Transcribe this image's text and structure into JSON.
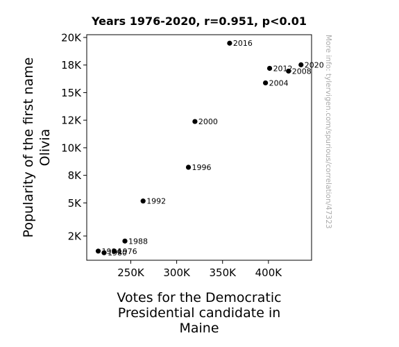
{
  "chart_data": {
    "type": "scatter",
    "title": "Years 1976-2020, r=0.951, p<0.01",
    "xlabel": [
      "Votes for the Democratic",
      "Presidential candidate in",
      "Maine"
    ],
    "ylabel": [
      "Popularity of the first name",
      "Olivia"
    ],
    "side_note": "More info: tylervigen.com/spurious/correlation/47323",
    "xlim": [
      202000,
      447000
    ],
    "ylim": [
      -200,
      20250
    ],
    "x_ticks": [
      {
        "value": 250000,
        "label": "250K"
      },
      {
        "value": 300000,
        "label": "300K"
      },
      {
        "value": 350000,
        "label": "350K"
      },
      {
        "value": 400000,
        "label": "400K"
      }
    ],
    "y_ticks": [
      {
        "value": 2000,
        "label": "2K"
      },
      {
        "value": 5000,
        "label": "5K"
      },
      {
        "value": 7500,
        "label": "8K"
      },
      {
        "value": 10000,
        "label": "10K"
      },
      {
        "value": 12500,
        "label": "12K"
      },
      {
        "value": 15000,
        "label": "15K"
      },
      {
        "value": 17500,
        "label": "18K"
      },
      {
        "value": 20000,
        "label": "20K"
      }
    ],
    "points": [
      {
        "label": "1976",
        "x": 232000,
        "y": 630
      },
      {
        "label": "1980",
        "x": 220900,
        "y": 480
      },
      {
        "label": "1984",
        "x": 214500,
        "y": 630
      },
      {
        "label": "1988",
        "x": 243600,
        "y": 1540
      },
      {
        "label": "1992",
        "x": 263400,
        "y": 5170
      },
      {
        "label": "1996",
        "x": 312800,
        "y": 8230
      },
      {
        "label": "2000",
        "x": 319900,
        "y": 12380
      },
      {
        "label": "2004",
        "x": 396800,
        "y": 15880
      },
      {
        "label": "2008",
        "x": 421900,
        "y": 16950
      },
      {
        "label": "2012",
        "x": 401300,
        "y": 17200
      },
      {
        "label": "2016",
        "x": 357700,
        "y": 19480
      },
      {
        "label": "2020",
        "x": 435500,
        "y": 17520
      }
    ],
    "grid": false,
    "legend": "none",
    "colors": {
      "marker": "#000000",
      "side_note": "#aaaaaa"
    }
  }
}
